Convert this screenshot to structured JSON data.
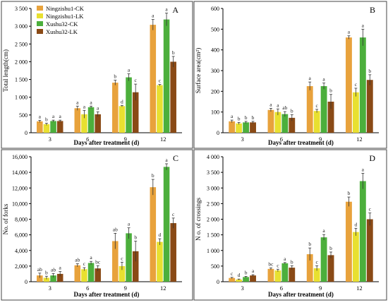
{
  "figure": {
    "x_axis_title": "Days after treatment (d)",
    "days": [
      "3",
      "6",
      "9",
      "12"
    ],
    "series_names": [
      "Ningzishu1-CK",
      "Ningzishu1-LK",
      "Xushu32-CK",
      "Xushu32-LK"
    ],
    "colors": {
      "Ningzishu1-CK": "#E8A23C",
      "Ningzishu1-LK": "#E8E030",
      "Xushu32-CK": "#4CAF3C",
      "Xushu32-LK": "#8A4A16",
      "error_bar": "#333333",
      "letter": "#222222",
      "border": "#444444",
      "background": "#ffffff"
    }
  },
  "chart_data": [
    {
      "panel": "A",
      "type": "bar",
      "ylabel": "Total length(cm)",
      "ylim": [
        0,
        3500
      ],
      "yticks": [
        "0",
        "500",
        "1 000",
        "1 500",
        "2 000",
        "2 500",
        "3 000",
        "3 500"
      ],
      "categories": [
        "3",
        "6",
        "9",
        "12"
      ],
      "legend": [
        "Ningzishu1-CK",
        "Ningzishu1-LK",
        "Xushu32-CK",
        "Xushu32-LK"
      ],
      "series": [
        {
          "name": "Ningzishu1-CK",
          "values": [
            320,
            690,
            1410,
            3040
          ],
          "errors": [
            30,
            60,
            70,
            150
          ],
          "letters": [
            "a",
            "a",
            "b",
            "a"
          ]
        },
        {
          "name": "Ningzishu1-LK",
          "values": [
            240,
            520,
            750,
            1340
          ],
          "errors": [
            30,
            110,
            20,
            20
          ],
          "letters": [
            "b",
            "a",
            "d",
            "c"
          ]
        },
        {
          "name": "Xushu32-CK",
          "values": [
            330,
            720,
            1560,
            3190
          ],
          "errors": [
            25,
            30,
            100,
            180
          ],
          "letters": [
            "a",
            "a",
            "a",
            "a"
          ]
        },
        {
          "name": "Xushu32-LK",
          "values": [
            330,
            520,
            1140,
            2000
          ],
          "errors": [
            25,
            70,
            230,
            150
          ],
          "letters": [
            "a",
            "a",
            "c",
            "b"
          ]
        }
      ]
    },
    {
      "panel": "B",
      "type": "bar",
      "ylabel": "Surface area(cm²)",
      "ylim": [
        0,
        600
      ],
      "yticks": [
        "0",
        "100",
        "200",
        "300",
        "400",
        "500",
        "600"
      ],
      "categories": [
        "3",
        "6",
        "9",
        "12"
      ],
      "series": [
        {
          "name": "Ningzishu1-CK",
          "values": [
            55,
            110,
            225,
            460
          ],
          "errors": [
            6,
            8,
            20,
            8
          ],
          "letters": [
            "a",
            "a",
            "a",
            "a"
          ]
        },
        {
          "name": "Ningzishu1-LK",
          "values": [
            45,
            100,
            105,
            195
          ],
          "errors": [
            5,
            15,
            8,
            20
          ],
          "letters": [
            "b",
            "a",
            "c",
            "c"
          ]
        },
        {
          "name": "Xushu32-CK",
          "values": [
            50,
            90,
            225,
            460
          ],
          "errors": [
            5,
            12,
            15,
            40
          ],
          "letters": [
            "b",
            "ab",
            "a",
            "a"
          ]
        },
        {
          "name": "Xushu32-LK",
          "values": [
            50,
            72,
            150,
            255
          ],
          "errors": [
            5,
            15,
            35,
            25
          ],
          "letters": [
            "b",
            "b",
            "b",
            "b"
          ]
        }
      ]
    },
    {
      "panel": "C",
      "type": "bar",
      "ylabel": "No. of forks",
      "ylim": [
        0,
        16000
      ],
      "yticks": [
        "0",
        "2,000",
        "4,000",
        "6,000",
        "8,000",
        "10,000",
        "12,000",
        "14,000",
        "16,000"
      ],
      "categories": [
        "3",
        "6",
        "9",
        "12"
      ],
      "series": [
        {
          "name": "Ningzishu1-CK",
          "values": [
            800,
            2100,
            5200,
            12100
          ],
          "errors": [
            300,
            200,
            1000,
            1000
          ],
          "letters": [
            "ab",
            "ab",
            "ab",
            "b"
          ]
        },
        {
          "name": "Ningzishu1-LK",
          "values": [
            500,
            1600,
            2000,
            5100
          ],
          "errors": [
            200,
            200,
            500,
            400
          ],
          "letters": [
            "b",
            "c",
            "c",
            "d"
          ]
        },
        {
          "name": "Xushu32-CK",
          "values": [
            800,
            2400,
            6200,
            14700
          ],
          "errors": [
            250,
            200,
            700,
            400
          ],
          "letters": [
            "ab",
            "a",
            "a",
            "a"
          ]
        },
        {
          "name": "Xushu32-LK",
          "values": [
            1000,
            1700,
            3900,
            7500
          ],
          "errors": [
            300,
            350,
            1300,
            650
          ],
          "letters": [
            "a",
            "bc",
            "b",
            "c"
          ]
        }
      ]
    },
    {
      "panel": "D",
      "type": "bar",
      "ylabel": "N o. of crossings",
      "ylim": [
        0,
        4000
      ],
      "yticks": [
        "0",
        "500",
        "1 000",
        "1 500",
        "2 000",
        "2 500",
        "3 000",
        "3 500",
        "4 000"
      ],
      "categories": [
        "3",
        "6",
        "9",
        "12"
      ],
      "series": [
        {
          "name": "Ningzishu1-CK",
          "values": [
            120,
            410,
            880,
            2560
          ],
          "errors": [
            20,
            30,
            200,
            150
          ],
          "letters": [
            "c",
            "bc",
            "b",
            "b"
          ]
        },
        {
          "name": "Ningzishu1-LK",
          "values": [
            70,
            360,
            430,
            1590
          ],
          "errors": [
            15,
            40,
            80,
            120
          ],
          "letters": [
            "d",
            "c",
            "c",
            "d"
          ]
        },
        {
          "name": "Xushu32-CK",
          "values": [
            150,
            590,
            1420,
            3220
          ],
          "errors": [
            20,
            25,
            90,
            250
          ],
          "letters": [
            "b",
            "a",
            "a",
            "a"
          ]
        },
        {
          "name": "Xushu32-LK",
          "values": [
            200,
            450,
            850,
            2000
          ],
          "errors": [
            25,
            60,
            100,
            200
          ],
          "letters": [
            "a",
            "b",
            "b",
            "c"
          ]
        }
      ]
    }
  ]
}
